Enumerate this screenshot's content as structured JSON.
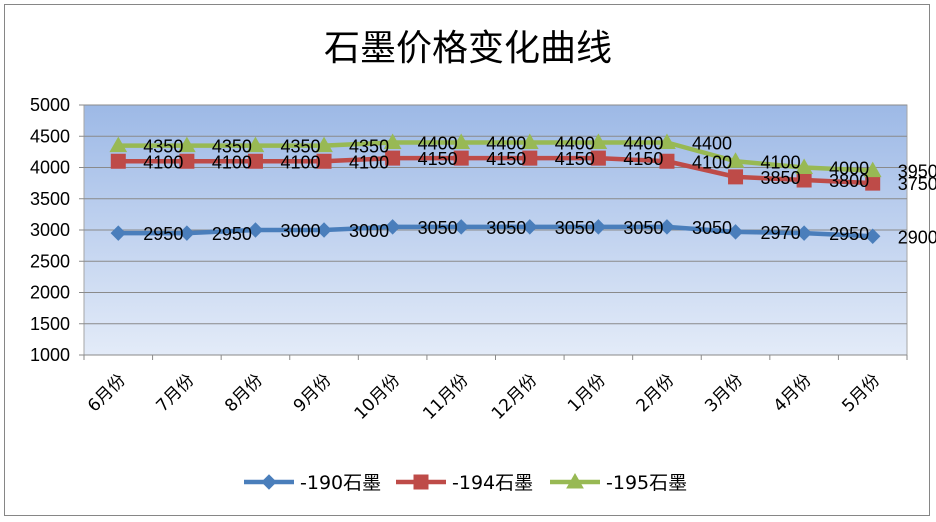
{
  "chart_data": {
    "type": "line",
    "title": "石墨价格变化曲线",
    "categories": [
      "6月份",
      "7月份",
      "8月份",
      "9月份",
      "10月份",
      "11月份",
      "12月份",
      "1月份",
      "2月份",
      "3月份",
      "4月份",
      "5月份"
    ],
    "ylim": [
      1000,
      5000
    ],
    "yticks": [
      1000,
      1500,
      2000,
      2500,
      3000,
      3500,
      4000,
      4500,
      5000
    ],
    "grid": true,
    "legend_position": "bottom",
    "series": [
      {
        "name": "-190石墨",
        "color": "#4a7ebb",
        "marker": "diamond",
        "values": [
          2950,
          2950,
          3000,
          3000,
          3050,
          3050,
          3050,
          3050,
          3050,
          2970,
          2950,
          2900
        ]
      },
      {
        "name": "-194石墨",
        "color": "#be4b48",
        "marker": "square",
        "values": [
          4100,
          4100,
          4100,
          4100,
          4150,
          4150,
          4150,
          4150,
          4100,
          3850,
          3800,
          3750
        ]
      },
      {
        "name": "-195石墨",
        "color": "#98b954",
        "marker": "triangle",
        "values": [
          4350,
          4350,
          4350,
          4350,
          4400,
          4400,
          4400,
          4400,
          4400,
          4100,
          4000,
          3950
        ]
      }
    ]
  }
}
